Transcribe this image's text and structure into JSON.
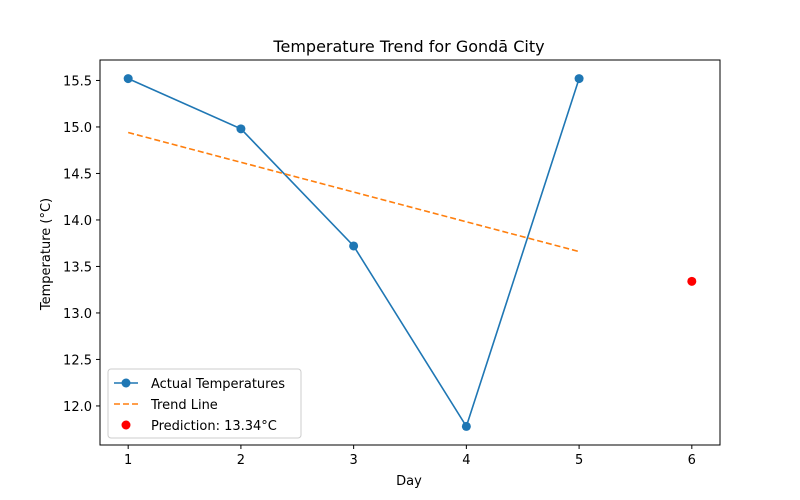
{
  "chart_data": {
    "type": "line",
    "title": "Temperature Trend for Gondā City",
    "xlabel": "Day",
    "ylabel": "Temperature (°C)",
    "xlim": [
      0.75,
      6.25
    ],
    "ylim": [
      11.58,
      15.72
    ],
    "x_ticks": [
      1,
      2,
      3,
      4,
      5,
      6
    ],
    "y_ticks": [
      12.0,
      12.5,
      13.0,
      13.5,
      14.0,
      14.5,
      15.0,
      15.5
    ],
    "grid": false,
    "legend_position": "lower-left",
    "series": [
      {
        "name": "Actual Temperatures",
        "style": "solid-line-with-markers",
        "color": "#1f77b4",
        "x": [
          1,
          2,
          3,
          4,
          5
        ],
        "y": [
          15.52,
          14.98,
          13.72,
          11.78,
          15.52
        ]
      },
      {
        "name": "Trend Line",
        "style": "dashed-line",
        "color": "#ff7f0e",
        "x": [
          1,
          5
        ],
        "y": [
          14.94,
          13.66
        ]
      },
      {
        "name": "Prediction: 13.34°C",
        "style": "point",
        "color": "#ff0000",
        "x": [
          6
        ],
        "y": [
          13.34
        ]
      }
    ]
  }
}
